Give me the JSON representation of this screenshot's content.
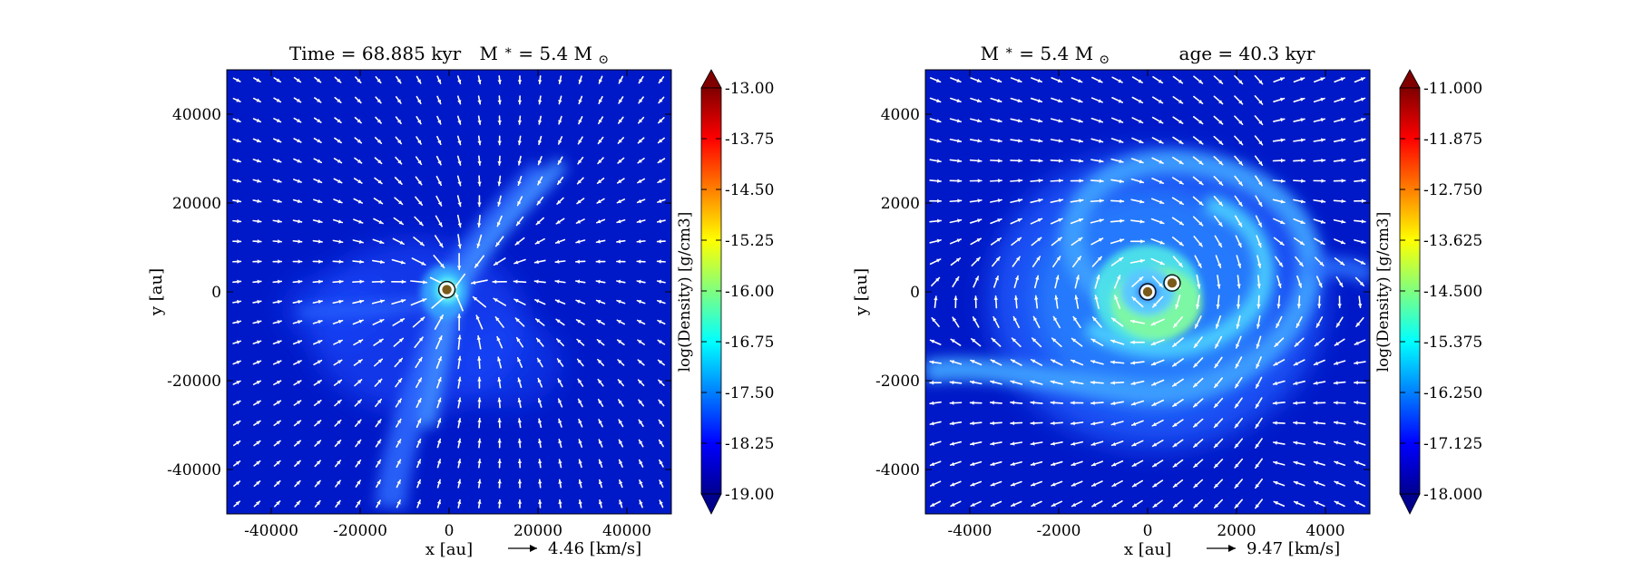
{
  "chart_data": [
    {
      "type": "heatmap",
      "title": "Time = 68.885 kyr    M∗ = 5.4 M⊙",
      "title_parts": [
        "Time = 68.885 kyr",
        "M",
        "∗",
        " = 5.4 M",
        "⊙"
      ],
      "xlabel": "x [au]",
      "ylabel": "y [au]",
      "xlim": [
        -50000,
        50000
      ],
      "ylim": [
        -50000,
        50000
      ],
      "xticks": [
        -40000,
        -20000,
        0,
        20000,
        40000
      ],
      "yticks": [
        -40000,
        -20000,
        0,
        20000,
        40000
      ],
      "xtick_labels": [
        "-40000",
        "-20000",
        "0",
        "20000",
        "40000"
      ],
      "ytick_labels": [
        "-40000",
        "-20000",
        "0",
        "20000",
        "40000"
      ],
      "colorbar": {
        "label": "log(Density) [g/cm3]",
        "min": -19.0,
        "max": -13.0,
        "ticks": [
          -19.0,
          -18.25,
          -17.5,
          -16.75,
          -16.0,
          -15.25,
          -14.5,
          -13.75,
          -13.0
        ],
        "tick_labels": [
          "-19.00",
          "-18.25",
          "-17.50",
          "-16.75",
          "-16.00",
          "-15.25",
          "-14.50",
          "-13.75",
          "-13.00"
        ],
        "colormap": "jet",
        "extend": "both"
      },
      "quiver_key": {
        "label": "4.46 [km/s]"
      },
      "sinks": [
        {
          "x": -500,
          "y": 500
        }
      ],
      "field": "filament",
      "background_color": "#0019c8"
    },
    {
      "type": "heatmap",
      "title": "M∗ = 5.4 M⊙          age = 40.3 kyr",
      "title_parts": [
        "M",
        "∗",
        " = 5.4 M",
        "⊙",
        "age = 40.3 kyr"
      ],
      "xlabel": "x [au]",
      "ylabel": "y [au]",
      "xlim": [
        -5000,
        5000
      ],
      "ylim": [
        -5000,
        5000
      ],
      "xticks": [
        -4000,
        -2000,
        0,
        2000,
        4000
      ],
      "yticks": [
        -4000,
        -2000,
        0,
        2000,
        4000
      ],
      "xtick_labels": [
        "-4000",
        "-2000",
        "0",
        "2000",
        "4000"
      ],
      "ytick_labels": [
        "-4000",
        "-2000",
        "0",
        "2000",
        "4000"
      ],
      "colorbar": {
        "label": "log(Density) [g/cm3]",
        "min": -18.0,
        "max": -11.0,
        "ticks": [
          -18.0,
          -17.125,
          -16.25,
          -15.375,
          -14.5,
          -13.625,
          -12.75,
          -11.875,
          -11.0
        ],
        "tick_labels": [
          "-18.000",
          "-17.125",
          "-16.250",
          "-15.375",
          "-14.500",
          "-13.625",
          "-12.750",
          "-11.875",
          "-11.000"
        ],
        "colormap": "jet",
        "extend": "both"
      },
      "quiver_key": {
        "label": "9.47 [km/s]"
      },
      "sinks": [
        {
          "x": 0,
          "y": 0
        },
        {
          "x": 550,
          "y": 200
        }
      ],
      "field": "spiral",
      "background_color": "#0019c8"
    }
  ]
}
